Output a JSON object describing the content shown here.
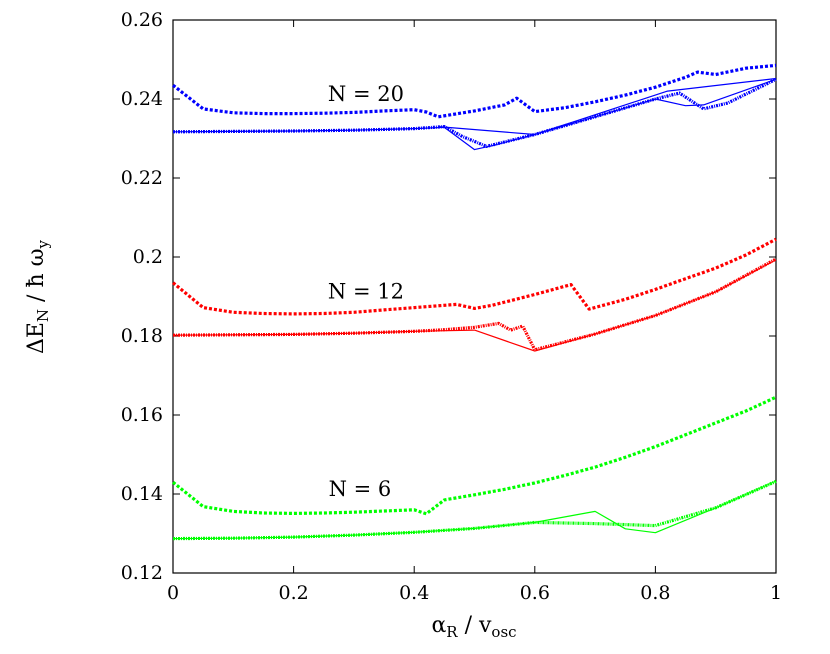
{
  "chart_data": {
    "type": "line",
    "title": "",
    "xlabel": {
      "main": "α",
      "sub1": "R",
      "mid": " / v",
      "sub2": "osc"
    },
    "ylabel": {
      "main": "ΔE",
      "sub1": "N",
      "mid": " / ħ ω",
      "sub2": "y"
    },
    "xlim": [
      0,
      1
    ],
    "ylim": [
      0.12,
      0.26
    ],
    "xticks": [
      0,
      0.2,
      0.4,
      0.6,
      0.8,
      1
    ],
    "xtick_labels": [
      "0",
      "0.2",
      "0.4",
      "0.6",
      "0.8",
      "1"
    ],
    "yticks": [
      0.12,
      0.14,
      0.16,
      0.18,
      0.2,
      0.22,
      0.24,
      0.26
    ],
    "ytick_labels": [
      "0.12",
      "0.14",
      "0.16",
      "0.18",
      "0.2",
      "0.22",
      "0.24",
      "0.26"
    ],
    "grid": false,
    "annotations": [
      {
        "text": "N = 20",
        "x": 0.32,
        "y": 0.2395
      },
      {
        "text": "N = 12",
        "x": 0.32,
        "y": 0.1895
      },
      {
        "text": "N = 6",
        "x": 0.31,
        "y": 0.1395
      }
    ],
    "series": [
      {
        "group": "N = 20",
        "style": "dotted",
        "color": "#0000ff",
        "x": [
          0,
          0.05,
          0.1,
          0.15,
          0.2,
          0.25,
          0.3,
          0.35,
          0.4,
          0.42,
          0.44,
          0.5,
          0.55,
          0.57,
          0.6,
          0.65,
          0.7,
          0.75,
          0.8,
          0.85,
          0.87,
          0.9,
          0.95,
          1
        ],
        "y": [
          0.2435,
          0.2375,
          0.2365,
          0.2363,
          0.2363,
          0.2364,
          0.2366,
          0.237,
          0.2373,
          0.2367,
          0.2355,
          0.237,
          0.2385,
          0.2402,
          0.2368,
          0.2378,
          0.2393,
          0.241,
          0.243,
          0.2455,
          0.2468,
          0.2462,
          0.2478,
          0.2485
        ]
      },
      {
        "group": "N = 20",
        "style": "dash-dot",
        "color": "#0000ff",
        "x": [
          0,
          0.1,
          0.2,
          0.3,
          0.4,
          0.45,
          0.48,
          0.52,
          0.6,
          0.7,
          0.8,
          0.84,
          0.88,
          0.92,
          1
        ],
        "y": [
          0.2317,
          0.2318,
          0.2319,
          0.2321,
          0.2325,
          0.233,
          0.2305,
          0.228,
          0.231,
          0.2355,
          0.24,
          0.2415,
          0.2375,
          0.239,
          0.245
        ]
      },
      {
        "group": "N = 20",
        "style": "solid",
        "color": "#0000ff",
        "x": [
          0,
          0.1,
          0.2,
          0.3,
          0.4,
          0.45,
          0.5,
          0.53,
          0.6,
          0.7,
          0.8,
          0.85,
          0.88,
          1
        ],
        "y": [
          0.2317,
          0.2318,
          0.2319,
          0.2321,
          0.2325,
          0.2328,
          0.2272,
          0.2282,
          0.231,
          0.2355,
          0.24,
          0.2383,
          0.2385,
          0.245
        ]
      },
      {
        "group": "N = 20",
        "style": "solid",
        "color": "#0000ff",
        "x": [
          0.44,
          0.6,
          0.82,
          1
        ],
        "y": [
          0.233,
          0.231,
          0.242,
          0.2452
        ]
      },
      {
        "group": "N = 12",
        "style": "dotted",
        "color": "#ff0000",
        "x": [
          0,
          0.05,
          0.1,
          0.15,
          0.2,
          0.25,
          0.3,
          0.35,
          0.4,
          0.47,
          0.5,
          0.53,
          0.6,
          0.66,
          0.69,
          0.75,
          0.8,
          0.85,
          0.9,
          0.95,
          1
        ],
        "y": [
          0.1935,
          0.1872,
          0.186,
          0.1857,
          0.1856,
          0.1857,
          0.186,
          0.1866,
          0.1872,
          0.188,
          0.187,
          0.1878,
          0.1905,
          0.193,
          0.1868,
          0.1893,
          0.1918,
          0.1945,
          0.1972,
          0.2005,
          0.2045
        ]
      },
      {
        "group": "N = 12",
        "style": "dash-dot",
        "color": "#ff0000",
        "x": [
          0,
          0.1,
          0.2,
          0.3,
          0.4,
          0.45,
          0.5,
          0.54,
          0.56,
          0.58,
          0.6,
          0.7,
          0.8,
          0.9,
          1
        ],
        "y": [
          0.1802,
          0.1803,
          0.1804,
          0.1807,
          0.1812,
          0.1816,
          0.1822,
          0.1832,
          0.1815,
          0.1825,
          0.1765,
          0.1805,
          0.1852,
          0.1912,
          0.1995
        ]
      },
      {
        "group": "N = 12",
        "style": "solid",
        "color": "#ff0000",
        "x": [
          0,
          0.1,
          0.2,
          0.3,
          0.4,
          0.5,
          0.6,
          0.7,
          0.8,
          0.9,
          1
        ],
        "y": [
          0.1802,
          0.1803,
          0.1804,
          0.1807,
          0.1812,
          0.1815,
          0.1762,
          0.1805,
          0.1852,
          0.1912,
          0.1993
        ]
      },
      {
        "group": "N = 6",
        "style": "dotted",
        "color": "#00ff00",
        "x": [
          0,
          0.05,
          0.1,
          0.15,
          0.2,
          0.25,
          0.3,
          0.35,
          0.4,
          0.42,
          0.45,
          0.5,
          0.55,
          0.6,
          0.65,
          0.7,
          0.75,
          0.8,
          0.85,
          0.9,
          0.95,
          1
        ],
        "y": [
          0.143,
          0.1368,
          0.1356,
          0.1352,
          0.1351,
          0.1352,
          0.1354,
          0.1357,
          0.136,
          0.135,
          0.1385,
          0.1398,
          0.1412,
          0.1428,
          0.1447,
          0.1468,
          0.1493,
          0.152,
          0.155,
          0.158,
          0.161,
          0.1645
        ]
      },
      {
        "group": "N = 6",
        "style": "dash-dot",
        "color": "#00ff00",
        "x": [
          0,
          0.1,
          0.2,
          0.3,
          0.4,
          0.5,
          0.6,
          0.7,
          0.8,
          0.9,
          1
        ],
        "y": [
          0.1287,
          0.1288,
          0.1291,
          0.1296,
          0.1303,
          0.1313,
          0.1328,
          0.1325,
          0.132,
          0.1365,
          0.1432
        ]
      },
      {
        "group": "N = 6",
        "style": "solid",
        "color": "#00ff00",
        "x": [
          0,
          0.1,
          0.2,
          0.3,
          0.4,
          0.5,
          0.6,
          0.7,
          0.75,
          0.8,
          0.9,
          1
        ],
        "y": [
          0.1287,
          0.1288,
          0.1291,
          0.1296,
          0.1303,
          0.1313,
          0.1328,
          0.1356,
          0.1312,
          0.1302,
          0.1365,
          0.1433
        ]
      }
    ]
  }
}
